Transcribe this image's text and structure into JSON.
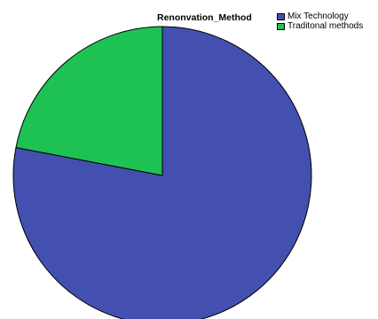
{
  "chart_data": {
    "type": "pie",
    "legend_title": "Renonvation_Method",
    "legend_position": "top-right",
    "slices": [
      {
        "label": "Mix Technology",
        "value": 78,
        "color": "#4350b0"
      },
      {
        "label": "Traditonal methods",
        "value": 22,
        "color": "#1ec253"
      }
    ],
    "start_angle_degrees": 0,
    "direction": "clockwise",
    "outline_color": "#000000"
  }
}
